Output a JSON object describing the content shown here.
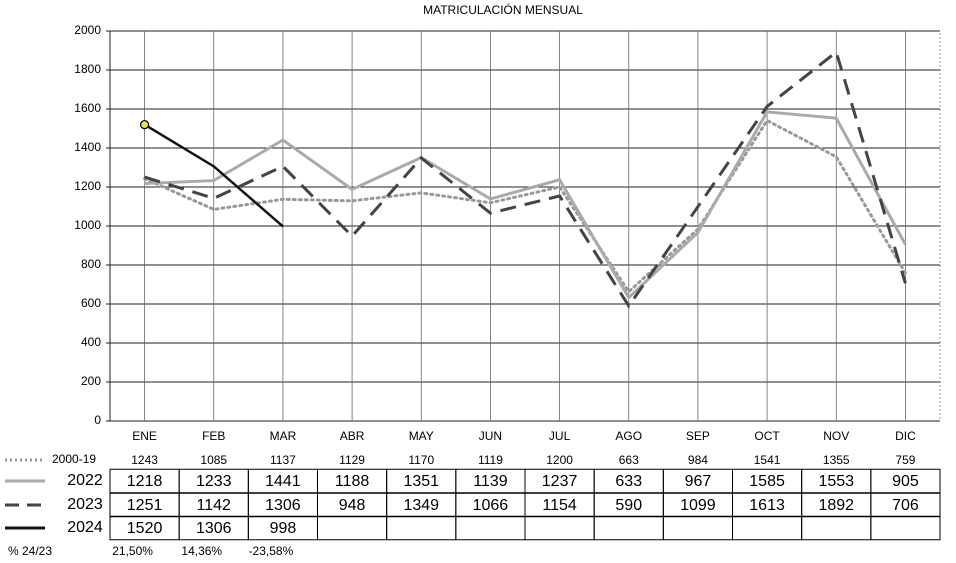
{
  "chart_data": {
    "type": "line",
    "title": "MATRICULACIÓN MENSUAL",
    "categories": [
      "ENE",
      "FEB",
      "MAR",
      "ABR",
      "MAY",
      "JUN",
      "JUL",
      "AGO",
      "SEP",
      "OCT",
      "NOV",
      "DIC"
    ],
    "ylim": [
      0,
      2000
    ],
    "yticks": [
      0,
      200,
      400,
      600,
      800,
      1000,
      1200,
      1400,
      1600,
      1800,
      2000
    ],
    "grid": true,
    "series": [
      {
        "name": "2000-19",
        "color": "#999999",
        "line_style": "dotted",
        "values": [
          1243,
          1085,
          1137,
          1129,
          1170,
          1119,
          1200,
          663,
          984,
          1541,
          1355,
          759
        ]
      },
      {
        "name": "2022",
        "color": "#aaaaaa",
        "line_style": "solid",
        "values": [
          1218,
          1233,
          1441,
          1188,
          1351,
          1139,
          1237,
          633,
          967,
          1585,
          1553,
          905
        ]
      },
      {
        "name": "2023",
        "color": "#444444",
        "line_style": "dashed",
        "values": [
          1251,
          1142,
          1306,
          948,
          1349,
          1066,
          1154,
          590,
          1099,
          1613,
          1892,
          706
        ]
      },
      {
        "name": "2024",
        "color": "#111111",
        "line_style": "solid",
        "marker": "#e6e64c",
        "values": [
          1520,
          1306,
          998,
          null,
          null,
          null,
          null,
          null,
          null,
          null,
          null,
          null
        ]
      }
    ],
    "pct_row": {
      "label": "% 24/23",
      "values": [
        21.5,
        14.36,
        -23.58
      ],
      "value_labels": [
        "21,50%",
        "14,36%",
        "-23,58%"
      ]
    }
  }
}
